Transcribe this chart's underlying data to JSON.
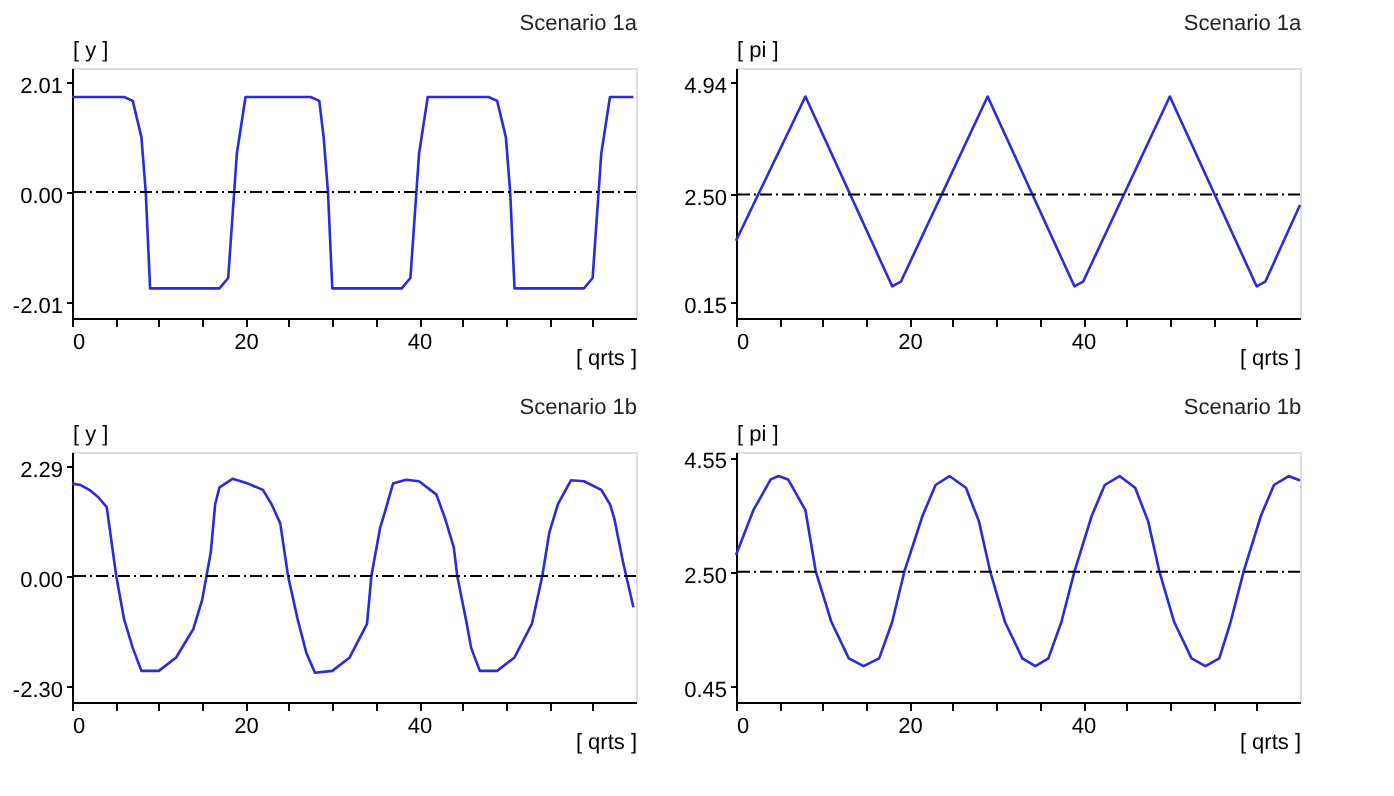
{
  "chart_data": [
    {
      "type": "line",
      "title": "Scenario 1a",
      "ylabel": "[ y ]",
      "xlabel": "[ qrts ]",
      "xlim": [
        0,
        65
      ],
      "ylim": [
        -2.3,
        2.26
      ],
      "xticks": [
        0,
        {
          "value": 5,
          "label": null
        },
        {
          "value": 10,
          "label": null
        },
        {
          "value": 15,
          "label": null
        },
        20,
        {
          "value": 25,
          "label": null
        },
        {
          "value": 30,
          "label": null
        },
        {
          "value": 35,
          "label": null
        },
        40,
        {
          "value": 45,
          "label": null
        },
        {
          "value": 50,
          "label": null
        },
        {
          "value": 55,
          "label": null
        },
        {
          "value": 60,
          "label": null
        }
      ],
      "yticks": [
        -2.01,
        {
          "value": 0,
          "label": "0.00"
        },
        2.01
      ],
      "grid": false,
      "marker": "none",
      "line_style": "solid",
      "ref_lines": [
        {
          "axis": "y",
          "value": 0,
          "label": null,
          "color": "#000000",
          "line_style": "dashed"
        }
      ],
      "series": [
        {
          "color": "#2b2bd9",
          "x": [
            0,
            6,
            7,
            8,
            8.5,
            9,
            17,
            18,
            19,
            20,
            27.5,
            28.5,
            29,
            29.5,
            30,
            38,
            39,
            40,
            41,
            48,
            49,
            50,
            50.5,
            51,
            59,
            60,
            61,
            62,
            64.7
          ],
          "values": [
            1.73,
            1.73,
            1.66,
            1.0,
            0,
            -1.76,
            -1.76,
            -1.57,
            0.7,
            1.73,
            1.73,
            1.66,
            1.0,
            0,
            -1.76,
            -1.76,
            -1.57,
            0.7,
            1.73,
            1.73,
            1.66,
            1.0,
            0,
            -1.76,
            -1.76,
            -1.57,
            0.7,
            1.73,
            1.73
          ]
        }
      ]
    },
    {
      "type": "line",
      "title": "Scenario 1a",
      "ylabel": "[ pi ]",
      "xlabel": "[ qrts ]",
      "xlim": [
        0,
        65
      ],
      "ylim": [
        -0.19,
        5.25
      ],
      "xticks": [
        0,
        {
          "value": 5,
          "label": null
        },
        {
          "value": 10,
          "label": null
        },
        {
          "value": 15,
          "label": null
        },
        20,
        {
          "value": 25,
          "label": null
        },
        {
          "value": 30,
          "label": null
        },
        {
          "value": 35,
          "label": null
        },
        40,
        {
          "value": 45,
          "label": null
        },
        {
          "value": 50,
          "label": null
        },
        {
          "value": 55,
          "label": null
        },
        {
          "value": 60,
          "label": null
        }
      ],
      "yticks": [
        0.15,
        {
          "value": 2.5,
          "label": "2.50"
        },
        4.94
      ],
      "grid": false,
      "marker": "none",
      "line_style": "solid",
      "ref_lines": [
        {
          "axis": "y",
          "value": 2.5,
          "label": null,
          "color": "#000000",
          "line_style": "dashed"
        }
      ],
      "series": [
        {
          "color": "#2b2bd9",
          "x": [
            0,
            8,
            18,
            19,
            29,
            39,
            40,
            50,
            60,
            61,
            65
          ],
          "values": [
            1.49,
            4.63,
            0.5,
            0.6,
            4.63,
            0.5,
            0.6,
            4.63,
            0.5,
            0.6,
            2.27
          ]
        }
      ]
    },
    {
      "type": "line",
      "title": "Scenario 1b",
      "ylabel": "[ y ]",
      "xlabel": "[ qrts ]",
      "xlim": [
        0,
        65
      ],
      "ylim": [
        -2.63,
        2.59
      ],
      "xticks": [
        0,
        {
          "value": 5,
          "label": null
        },
        {
          "value": 10,
          "label": null
        },
        {
          "value": 15,
          "label": null
        },
        20,
        {
          "value": 25,
          "label": null
        },
        {
          "value": 30,
          "label": null
        },
        {
          "value": 35,
          "label": null
        },
        40,
        {
          "value": 45,
          "label": null
        },
        {
          "value": 50,
          "label": null
        },
        {
          "value": 55,
          "label": null
        },
        {
          "value": 60,
          "label": null
        }
      ],
      "yticks": [
        {
          "value": -2.3,
          "label": "-2.30"
        },
        {
          "value": 0,
          "label": "0.00"
        },
        2.29
      ],
      "grid": false,
      "marker": "none",
      "line_style": "solid",
      "ref_lines": [
        {
          "axis": "y",
          "value": 0,
          "label": null,
          "color": "#000000",
          "line_style": "dashed"
        }
      ],
      "series": [
        {
          "color": "#2b2bd9",
          "x": [
            0,
            1,
            2,
            3,
            4,
            5.1,
            6,
            7,
            8,
            10,
            12,
            14,
            15,
            16,
            16.5,
            17,
            18.5,
            20,
            22,
            23,
            24,
            24.9,
            26,
            27,
            28,
            30,
            32,
            34,
            34.5,
            35.5,
            36,
            37,
            38.5,
            40,
            42,
            43,
            44,
            44.4,
            45.5,
            46,
            47,
            49,
            51,
            53,
            54.2,
            55,
            56,
            57.5,
            59,
            61,
            62,
            62.5,
            63.5,
            64.7
          ],
          "values": [
            1.93,
            1.9,
            1.8,
            1.65,
            1.44,
            0,
            -0.9,
            -1.5,
            -1.98,
            -1.98,
            -1.7,
            -1.1,
            -0.5,
            0.5,
            1.5,
            1.85,
            2.03,
            1.95,
            1.8,
            1.5,
            1.1,
            0,
            -0.9,
            -1.6,
            -2.02,
            -1.98,
            -1.7,
            -1.0,
            0,
            1.0,
            1.3,
            1.93,
            2.01,
            1.98,
            1.7,
            1.2,
            0.6,
            0,
            -1.0,
            -1.5,
            -1.98,
            -1.98,
            -1.7,
            -1.0,
            0,
            0.9,
            1.5,
            2.0,
            1.98,
            1.8,
            1.5,
            1.2,
            0.3,
            -0.65
          ]
        }
      ]
    },
    {
      "type": "line",
      "title": "Scenario 1b",
      "ylabel": "[ pi ]",
      "xlabel": "[ qrts ]",
      "xlim": [
        0,
        65
      ],
      "ylim": [
        0.17,
        4.64
      ],
      "xticks": [
        0,
        {
          "value": 5,
          "label": null
        },
        {
          "value": 10,
          "label": null
        },
        {
          "value": 15,
          "label": null
        },
        20,
        {
          "value": 25,
          "label": null
        },
        {
          "value": 30,
          "label": null
        },
        {
          "value": 35,
          "label": null
        },
        40,
        {
          "value": 45,
          "label": null
        },
        {
          "value": 50,
          "label": null
        },
        {
          "value": 55,
          "label": null
        },
        {
          "value": 60,
          "label": null
        }
      ],
      "yticks": [
        0.45,
        {
          "value": 2.5,
          "label": "2.50"
        },
        4.55
      ],
      "grid": false,
      "marker": "none",
      "line_style": "solid",
      "ref_lines": [
        {
          "axis": "y",
          "value": 2.5,
          "label": null,
          "color": "#000000",
          "line_style": "dashed"
        }
      ],
      "series": [
        {
          "color": "#2b2bd9",
          "x": [
            0,
            2,
            4,
            4.9,
            6,
            8,
            9.2,
            11,
            13,
            14.7,
            16.5,
            18,
            19.4,
            21.5,
            23,
            24.6,
            26.5,
            28,
            29.3,
            31,
            33,
            34.5,
            36,
            37.5,
            39,
            41,
            42.5,
            44.2,
            46,
            47.5,
            48.8,
            50.5,
            52.5,
            54.1,
            55.7,
            57,
            58.5,
            60.5,
            62,
            63.7,
            65
          ],
          "values": [
            2.8,
            3.6,
            4.15,
            4.21,
            4.15,
            3.6,
            2.5,
            1.6,
            0.95,
            0.81,
            0.95,
            1.6,
            2.5,
            3.5,
            4.05,
            4.21,
            4.0,
            3.4,
            2.5,
            1.6,
            0.95,
            0.81,
            0.95,
            1.6,
            2.5,
            3.5,
            4.05,
            4.21,
            4.0,
            3.4,
            2.5,
            1.6,
            0.95,
            0.81,
            0.95,
            1.6,
            2.5,
            3.5,
            4.05,
            4.21,
            4.13
          ]
        }
      ]
    }
  ]
}
